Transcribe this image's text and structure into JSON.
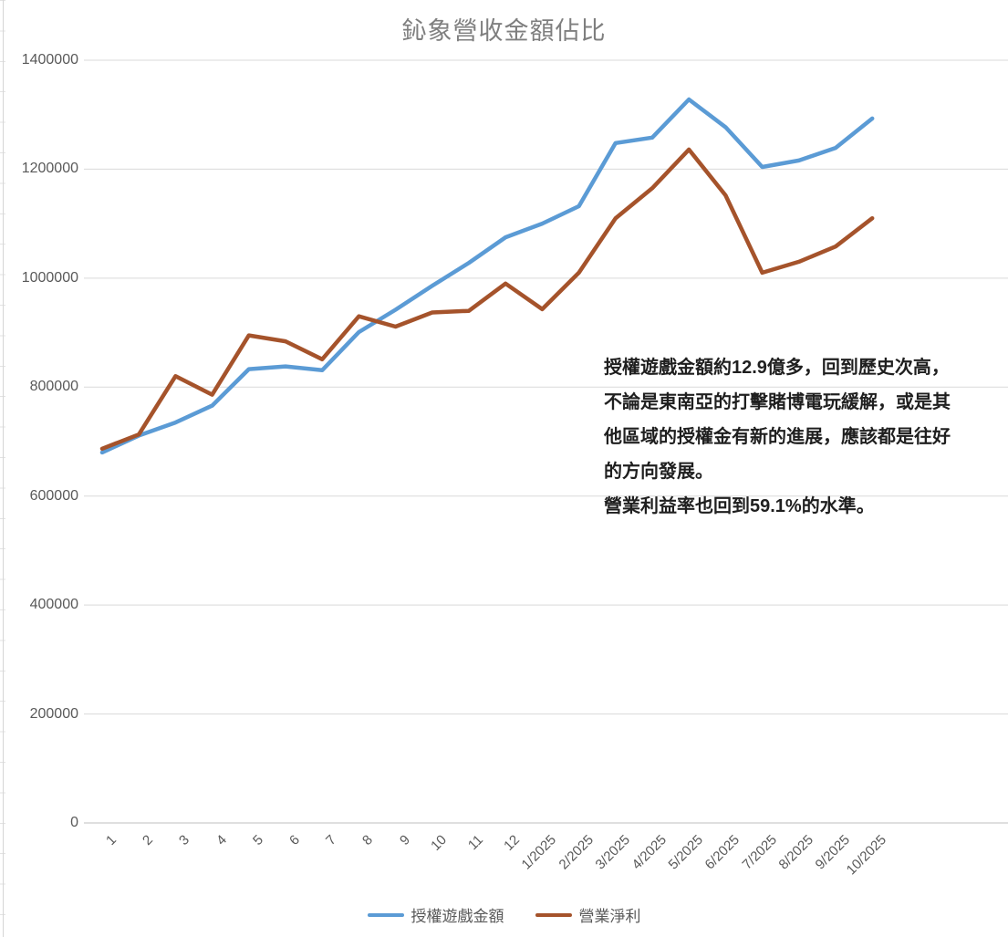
{
  "chart_data": {
    "type": "line",
    "title": "鈊象營收金額佔比",
    "categories": [
      "1",
      "2",
      "3",
      "4",
      "5",
      "6",
      "7",
      "8",
      "9",
      "10",
      "11",
      "12",
      "1/2025",
      "2/2025",
      "3/2025",
      "4/2025",
      "5/2025",
      "6/2025",
      "7/2025",
      "8/2025",
      "9/2025",
      "10/2025"
    ],
    "series": [
      {
        "name": "授權遊戲金額",
        "color": "#5B9BD5",
        "values": [
          680000,
          711000,
          735000,
          766000,
          833000,
          838000,
          831000,
          901000,
          942000,
          986000,
          1028000,
          1075000,
          1100000,
          1132000,
          1248000,
          1258000,
          1328000,
          1277000,
          1204000,
          1216000,
          1239000,
          1293000
        ]
      },
      {
        "name": "營業淨利",
        "color": "#A5532B",
        "values": [
          687000,
          713000,
          820000,
          786000,
          895000,
          884000,
          851000,
          930000,
          911000,
          937000,
          940000,
          990000,
          943000,
          1010000,
          1110000,
          1165000,
          1236000,
          1152000,
          1010000,
          1030000,
          1058000,
          1110000
        ]
      }
    ],
    "ylim": [
      0,
      1400000
    ],
    "ytick_step": 200000,
    "xlabel": "",
    "ylabel": "",
    "grid": "horizontal",
    "legend_position": "bottom"
  },
  "annotation": {
    "lines": [
      "授權遊戲金額約12.9億多，回到歷史次高，",
      "不論是東南亞的打擊賭博電玩緩解，或是其",
      "他區域的授權金有新的進展，應該都是往好",
      "的方向發展。",
      "營業利益率也回到59.1%的水準。"
    ]
  },
  "colors": {
    "grid_line": "#D9D9D9",
    "axis_zero_line": "#BFBFBF",
    "tick_text": "#595959",
    "title_text": "#7F7F7F",
    "legend_text": "#595959",
    "annotation_text": "#1F1F1F",
    "series_blue": "#5B9BD5",
    "series_brown": "#A5532B"
  }
}
